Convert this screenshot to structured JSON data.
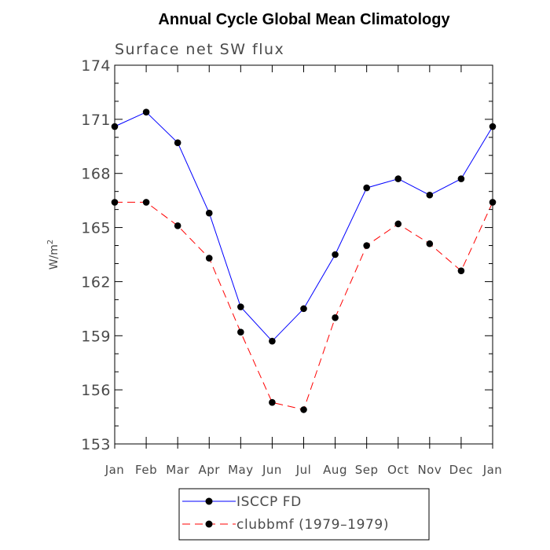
{
  "chart_data": {
    "type": "line",
    "title": "Annual Cycle Global Mean Climatology",
    "subtitle": "Surface net SW flux",
    "xlabel": "",
    "ylabel": "W/m",
    "ylabel_superscript": "2",
    "categories": [
      "Jan",
      "Feb",
      "Mar",
      "Apr",
      "May",
      "Jun",
      "Jul",
      "Aug",
      "Sep",
      "Oct",
      "Nov",
      "Dec",
      "Jan"
    ],
    "ylim": [
      153,
      174
    ],
    "yticks": [
      153,
      156,
      159,
      162,
      165,
      168,
      171,
      174
    ],
    "legend_position": "bottom",
    "series": [
      {
        "name": "ISCCP FD",
        "color": "#0000ff",
        "dash": "solid",
        "values": [
          170.6,
          171.4,
          169.7,
          165.8,
          160.6,
          158.7,
          160.5,
          163.5,
          167.2,
          167.7,
          166.8,
          167.7,
          170.6
        ]
      },
      {
        "name": "clubbmf (1979–1979)",
        "color": "#ff0000",
        "dash": "dashed",
        "values": [
          166.4,
          166.4,
          165.1,
          163.3,
          159.2,
          155.3,
          154.9,
          160.0,
          164.0,
          165.2,
          164.1,
          162.6,
          166.4
        ]
      }
    ]
  }
}
